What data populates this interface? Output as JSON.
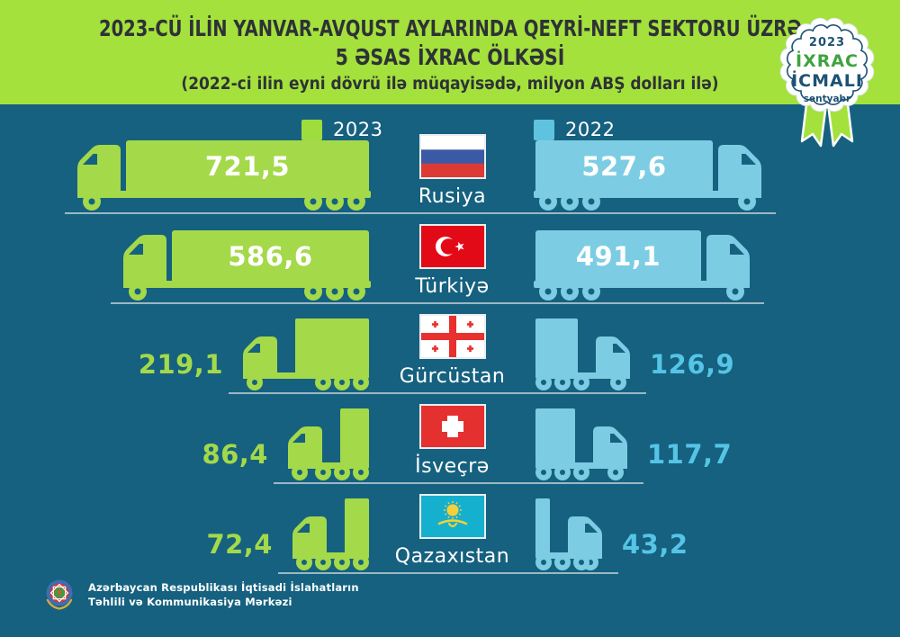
{
  "header": {
    "title_line1": "2023-CÜ İLİN YANVAR-AVQUST AYLARINDA QEYRİ-NEFT SEKTORU ÜZRƏ",
    "title_line2": "5 ƏSAS İXRAC ÖLKƏSİ",
    "subtitle": "(2022-ci ilin eyni dövrü ilə müqayisədə, milyon ABŞ dolları ilə)"
  },
  "badge": {
    "year": "2023",
    "line1": "İXRAC",
    "line2": "İCMALI",
    "month": "sentyabr"
  },
  "legend": [
    {
      "label": "2023",
      "color": "#9fdc3e"
    },
    {
      "label": "2022",
      "color": "#5fc3e0"
    }
  ],
  "colors": {
    "background": "#15617f",
    "header_band": "#a4e13c",
    "truck_2023": "#a4d94a",
    "truck_2022": "#7ccde3",
    "value_text_2022": "#55c4e6",
    "value_text_2023": "#a4d94a",
    "ground_line": "#9cb8c4",
    "title_text": "#2e3236"
  },
  "rows": [
    {
      "country": "Rusiya",
      "flag": "russia",
      "v2023": "721,5",
      "v2022": "527,6",
      "n2023": 721.5,
      "n2022": 527.6
    },
    {
      "country": "Türkiyə",
      "flag": "turkiye",
      "v2023": "586,6",
      "v2022": "491,1",
      "n2023": 586.6,
      "n2022": 491.1
    },
    {
      "country": "Gürcüstan",
      "flag": "georgia",
      "v2023": "219,1",
      "v2022": "126,9",
      "n2023": 219.1,
      "n2022": 126.9
    },
    {
      "country": "İsveçrə",
      "flag": "switzerland",
      "v2023": "86,4",
      "v2022": "117,7",
      "n2023": 86.4,
      "n2022": 117.7
    },
    {
      "country": "Qazaxıstan",
      "flag": "kazakhstan",
      "v2023": "72,4",
      "v2022": "43,2",
      "n2023": 72.4,
      "n2022": 43.2
    }
  ],
  "footer": {
    "org_line1": "Azərbaycan Respublikası İqtisadi İslahatların",
    "org_line2": "Təhlili və Kommunikasiya Mərkəzi"
  },
  "chart_data": {
    "type": "bar",
    "title": "2023-cü ilin yanvar-avqust aylarında qeyri-neft sektoru üzrə 5 əsas ixrac ölkəsi",
    "subtitle": "2022-ci ilin eyni dövrü ilə müqayisədə",
    "unit": "milyon ABŞ dolları",
    "categories": [
      "Rusiya",
      "Türkiyə",
      "Gürcüstan",
      "İsveçrə",
      "Qazaxıstan"
    ],
    "series": [
      {
        "name": "2023",
        "color": "#a4d94a",
        "values": [
          721.5,
          586.6,
          219.1,
          86.4,
          72.4
        ]
      },
      {
        "name": "2022",
        "color": "#7ccde3",
        "values": [
          527.6,
          491.1,
          126.9,
          117.7,
          43.2
        ]
      }
    ],
    "legend_position": "top",
    "orientation": "horizontal-mirrored",
    "grid": false
  }
}
